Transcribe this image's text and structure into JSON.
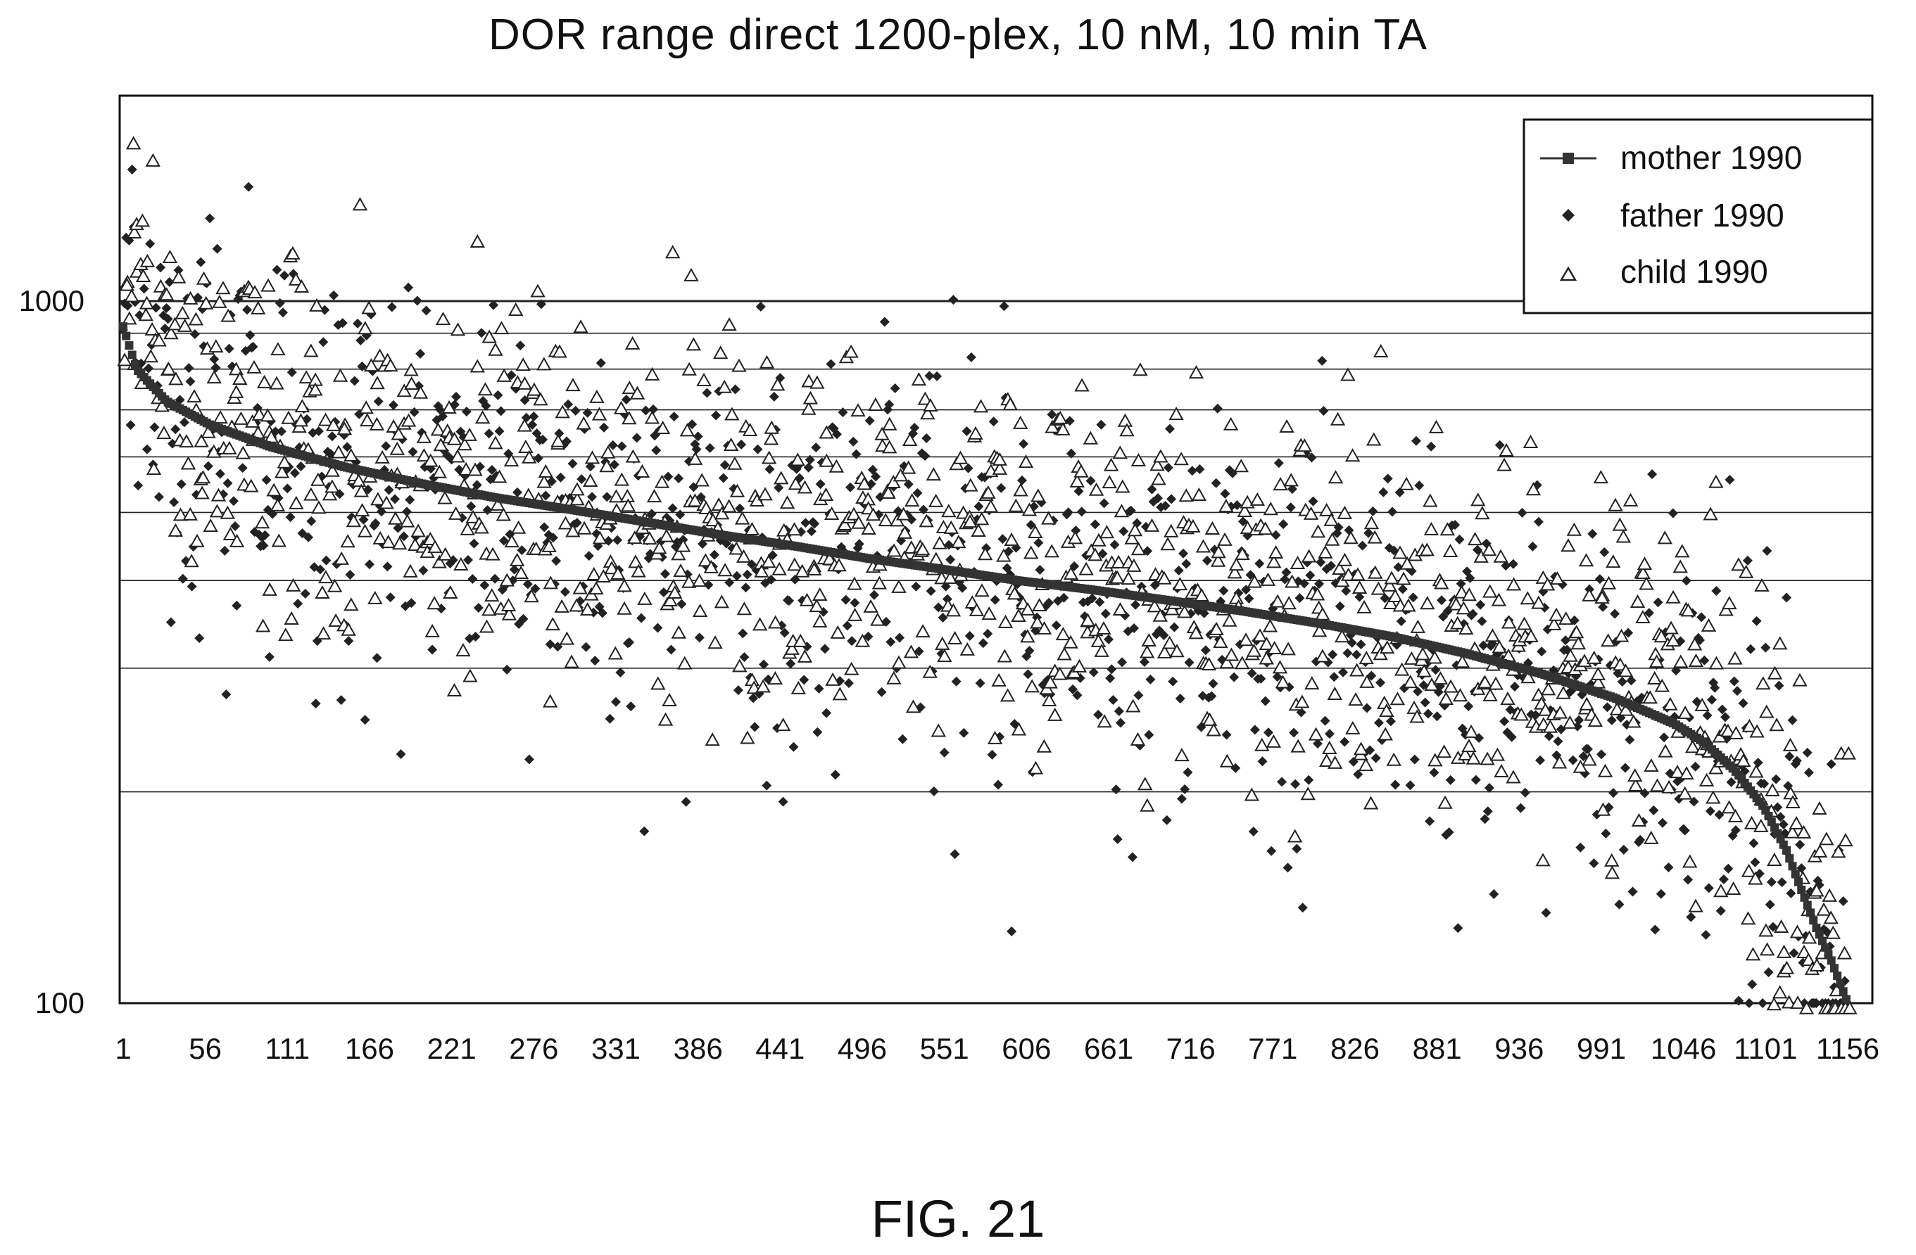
{
  "title": "DOR range direct 1200-plex, 10 nM, 10 min TA",
  "caption": "FIG. 21",
  "chart_data": {
    "type": "scatter",
    "title": "DOR range direct 1200-plex, 10 nM, 10 min TA",
    "xlabel": "",
    "ylabel": "",
    "x_tick_labels": [
      "1",
      "56",
      "111",
      "166",
      "221",
      "276",
      "331",
      "386",
      "441",
      "496",
      "551",
      "606",
      "661",
      "716",
      "771",
      "826",
      "881",
      "936",
      "991",
      "1046",
      "1101",
      "1156"
    ],
    "y_tick_labels": [
      "1000",
      "100"
    ],
    "y_scale": "log",
    "ylim": [
      100,
      3000
    ],
    "xlim": [
      1,
      1200
    ],
    "grid": "horizontal lines at log decades 200, 300, 400, 500, 600, 700, 800, 900, 1000",
    "gridlines_y": [
      200,
      300,
      400,
      500,
      600,
      700,
      800,
      900,
      1000
    ],
    "legend_position": "top-right",
    "series": [
      {
        "name": "mother 1990",
        "marker": "square-line",
        "color": "#333333",
        "curve": [
          [
            1,
            920
          ],
          [
            10,
            800
          ],
          [
            30,
            720
          ],
          [
            60,
            665
          ],
          [
            100,
            620
          ],
          [
            150,
            580
          ],
          [
            200,
            550
          ],
          [
            250,
            525
          ],
          [
            300,
            505
          ],
          [
            350,
            485
          ],
          [
            400,
            465
          ],
          [
            450,
            448
          ],
          [
            500,
            430
          ],
          [
            550,
            415
          ],
          [
            600,
            400
          ],
          [
            650,
            388
          ],
          [
            700,
            375
          ],
          [
            750,
            362
          ],
          [
            800,
            348
          ],
          [
            850,
            333
          ],
          [
            900,
            315
          ],
          [
            950,
            295
          ],
          [
            1000,
            272
          ],
          [
            1040,
            250
          ],
          [
            1060,
            235
          ],
          [
            1080,
            215
          ],
          [
            1100,
            190
          ],
          [
            1115,
            165
          ],
          [
            1125,
            145
          ],
          [
            1135,
            128
          ],
          [
            1145,
            115
          ],
          [
            1150,
            108
          ],
          [
            1156,
            100
          ]
        ]
      },
      {
        "name": "father 1990",
        "marker": "diamond",
        "color": "#222222"
      },
      {
        "name": "child 1990",
        "marker": "triangle-open",
        "color": "#222222"
      }
    ]
  }
}
